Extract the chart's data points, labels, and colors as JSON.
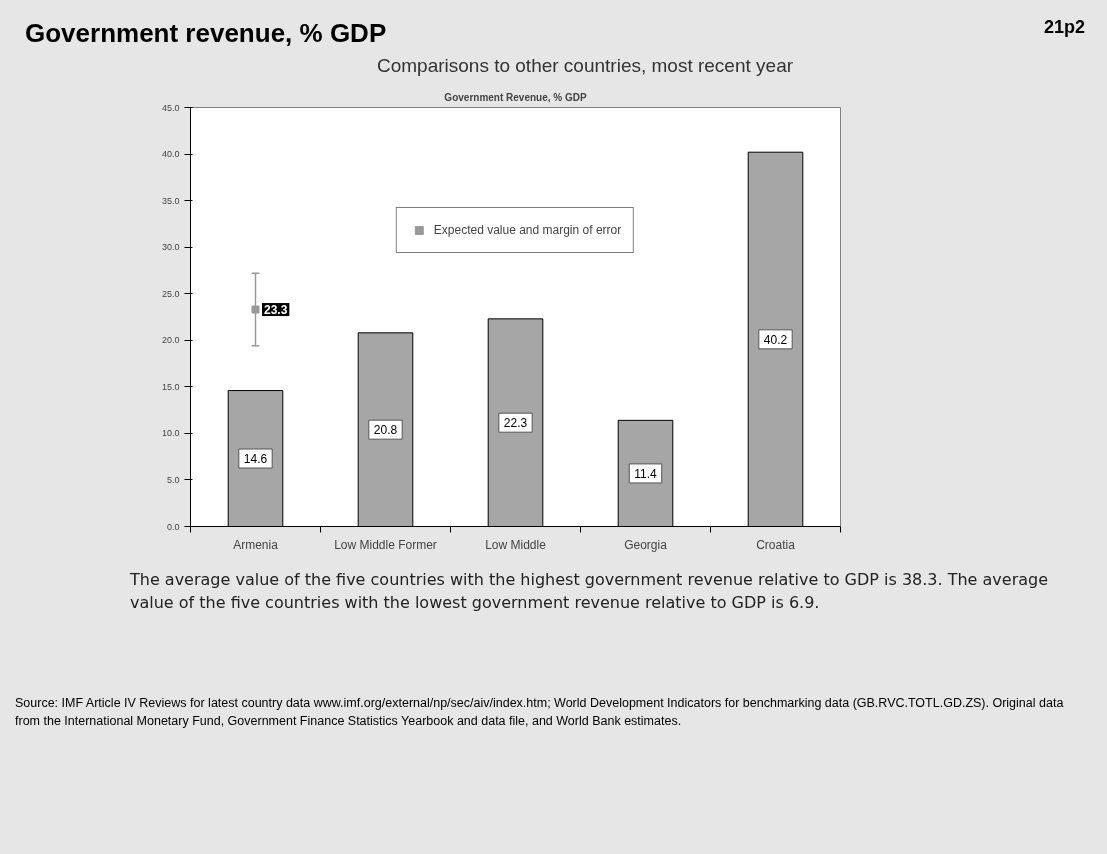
{
  "chart_data": {
    "type": "bar",
    "title": "Government revenue, % GDP",
    "subtitle": "Comparisons to other countries, most recent year",
    "categories": [
      "Armenia",
      "Low Middle Former",
      "Low Middle",
      "Georgia",
      "Croatia"
    ],
    "series": [
      {
        "color": "#a6a6a6",
        "values": [
          14.6,
          20.8,
          22.3,
          11.4,
          40.2
        ]
      },
      {
        "type": "scatter",
        "name": "Expected value and margin of error",
        "color": "#999999",
        "x": [
          "Armenia"
        ],
        "values": [
          23.3
        ],
        "errors": [
          [
            19.4,
            27.2
          ]
        ],
        "value_labels": [
          "23.3"
        ]
      }
    ],
    "data_labels": true,
    "marker": "square",
    "legend": "top",
    "grid": false,
    "ylim": [
      0,
      45
    ],
    "yticks": [
      {
        "value": 0,
        "label": "0.0"
      },
      {
        "value": 5,
        "label": "5.0"
      },
      {
        "value": 10,
        "label": "10.0"
      },
      {
        "value": 15,
        "label": "15.0"
      },
      {
        "value": 20,
        "label": "20.0"
      },
      {
        "value": 25,
        "label": "25.0"
      },
      {
        "value": 30,
        "label": "30.0"
      },
      {
        "value": 35,
        "label": "35.0"
      },
      {
        "value": 40,
        "label": "40.0"
      },
      {
        "value": 45,
        "label": "45.0"
      }
    ],
    "annotations": [
      "21p2",
      "Government Revenue, % GDP",
      "The average value of the five countries with the highest government revenue relative to GDP is 38.3. The average value of the five countries with the lowest government revenue relative to GDP is 6.9.",
      "Source: IMF Article IV Reviews for latest country data www.imf.org/external/np/sec/aiv/index.htm; World Development Indicators for benchmarking data (GB.RVC.TOTL.GD.ZS).  Original data from the International Monetary Fund, Government Finance Statistics Yearbook and data file, and World Bank estimates."
    ]
  }
}
